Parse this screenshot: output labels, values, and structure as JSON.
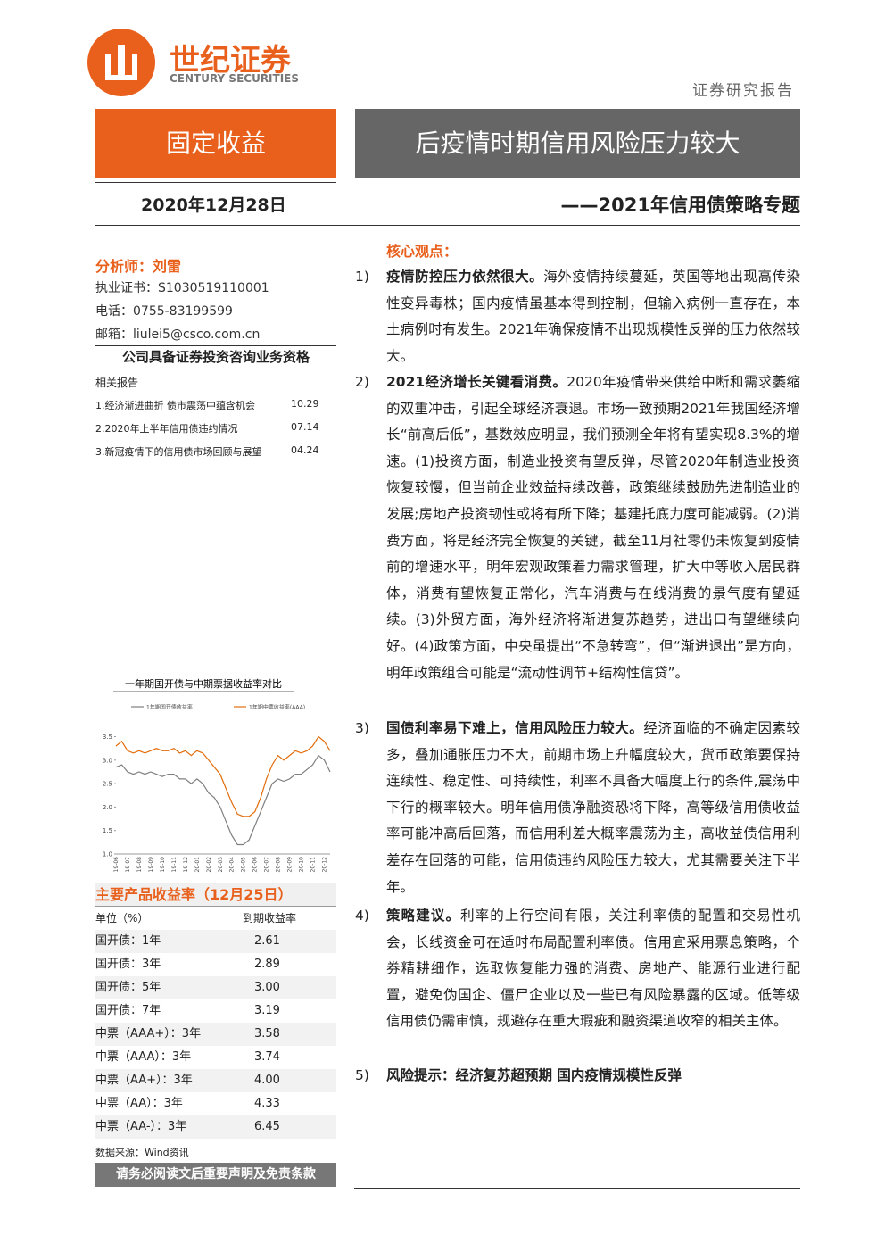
{
  "header": {
    "brand": "世纪证券",
    "brand_en": "CENTURY SECURITIES",
    "report_type": "证券研究报告"
  },
  "banner": {
    "category": "固定收益",
    "title": "后疫情时期信用风险压力较大"
  },
  "date": "2020年12月28日",
  "subtitle": "——2021年信用债策略专题",
  "analyst": {
    "name": "分析师：刘雷",
    "cert": "执业证书：S1030519110001",
    "phone": "电话：0755-83199599",
    "email": "邮箱：liulei5@csco.com.cn"
  },
  "qualification": "公司具备证券投资咨询业务资格",
  "related": {
    "title": "相关报告",
    "items": [
      {
        "title": "1.经济渐进曲折 债市震荡中蕴含机会",
        "date": "10.29"
      },
      {
        "title": "2.2020年上半年信用债违约情况",
        "date": "07.14"
      },
      {
        "title": "3.新冠疫情下的信用债市场回顾与展望",
        "date": "04.24"
      }
    ]
  },
  "chart_data": {
    "type": "line",
    "title": "一年期国开债与中期票据收益率对比",
    "categories": [
      "19-06",
      null,
      "19-07",
      null,
      "19-08",
      null,
      "19-09",
      null,
      "19-10",
      null,
      "19-11",
      null,
      "19-12",
      null,
      "20-01",
      null,
      "20-02",
      null,
      "20-03",
      null,
      "20-04",
      null,
      "20-05",
      null,
      "20-06",
      null,
      "20-07",
      null,
      "20-08",
      null,
      "20-09",
      null,
      "20-10",
      null,
      "20-11",
      null,
      "20-12",
      null
    ],
    "series": [
      {
        "name": "1年期国开债收益率",
        "color": "#7f7f7f",
        "values": [
          2.85,
          2.9,
          2.75,
          2.7,
          2.75,
          2.7,
          2.75,
          2.7,
          2.65,
          2.7,
          2.7,
          2.6,
          2.6,
          2.5,
          2.6,
          2.5,
          2.3,
          2.2,
          2.0,
          1.7,
          1.4,
          1.2,
          1.2,
          1.3,
          1.6,
          1.9,
          2.2,
          2.5,
          2.6,
          2.55,
          2.6,
          2.7,
          2.7,
          2.8,
          2.9,
          3.1,
          3.0,
          2.75
        ]
      },
      {
        "name": "1年期中票收益率(AAA)",
        "color": "#e36c0a",
        "values": [
          3.3,
          3.4,
          3.2,
          3.15,
          3.2,
          3.15,
          3.2,
          3.25,
          3.2,
          3.2,
          3.25,
          3.15,
          3.2,
          3.1,
          3.2,
          3.15,
          3.0,
          2.85,
          2.7,
          2.4,
          2.1,
          1.85,
          1.8,
          1.8,
          1.9,
          2.2,
          2.6,
          2.9,
          3.1,
          3.0,
          3.1,
          3.2,
          3.15,
          3.2,
          3.3,
          3.5,
          3.4,
          3.2
        ]
      }
    ],
    "ylim": [
      1.0,
      3.7
    ],
    "yticks": [
      {
        "value": 1.0,
        "label": "1.0"
      },
      1.5,
      {
        "value": 2.0,
        "label": "2.0"
      },
      2.5,
      {
        "value": 3.0,
        "label": "3.0"
      },
      3.5
    ]
  },
  "yields": {
    "title": "主要产品收益率（12月25日）",
    "header": [
      "单位（%）",
      "到期收益率"
    ],
    "rows": [
      [
        "国开债：1年",
        "2.61"
      ],
      [
        "国开债：3年",
        "2.89"
      ],
      [
        "国开债：5年",
        "3.00"
      ],
      [
        "国开债：7年",
        "3.19"
      ],
      [
        "中票（AAA+）：3年",
        "3.58"
      ],
      [
        "中票（AAA）：3年",
        "3.74"
      ],
      [
        "中票（AA+）：3年",
        "4.00"
      ],
      [
        "中票（AA）：3年",
        "4.33"
      ],
      [
        "中票（AA-）：3年",
        "6.45"
      ]
    ],
    "source": "数据来源：Wind资讯"
  },
  "disclaimer": "请务必阅读文后重要声明及免责条款",
  "core": {
    "title": "核心观点：",
    "points": [
      {
        "number": "1)",
        "lead": "疫情防控压力依然很大。",
        "text": "海外疫情持续蔓延，英国等地出现高传染性变异毒株；国内疫情虽基本得到控制，但输入病例一直存在，本土病例时有发生。2021年确保疫情不出现规模性反弹的压力依然较大。"
      },
      {
        "number": "2)",
        "lead": "2021经济增长关键看消费。",
        "text": "2020年疫情带来供给中断和需求萎缩的双重冲击，引起全球经济衰退。市场一致预期2021年我国经济增长“前高后低”，基数效应明显，我们预测全年将有望实现8.3%的增速。(1)投资方面，制造业投资有望反弹，尽管2020年制造业投资恢复较慢，但当前企业效益持续改善，政策继续鼓励先进制造业的发展;房地产投资韧性或将有所下降；基建托底力度可能减弱。(2)消费方面，将是经济完全恢复的关键，截至11月社零仍未恢复到疫情前的增速水平，明年宏观政策着力需求管理，扩大中等收入居民群体，消费有望恢复正常化，汽车消费与在线消费的景气度有望延续。(3)外贸方面，海外经济将渐进复苏趋势，进出口有望继续向好。(4)政策方面，中央虽提出“不急转弯”，但“渐进退出”是方向，明年政策组合可能是“流动性调节+结构性信贷”。"
      },
      {
        "number": "3)",
        "lead": "国债利率易下难上，信用风险压力较大。",
        "text": "经济面临的不确定因素较多，叠加通胀压力不大，前期市场上升幅度较大，货币政策要保持连续性、稳定性、可持续性，利率不具备大幅度上行的条件,震荡中下行的概率较大。明年信用债净融资恐将下降，高等级信用债收益率可能冲高后回落，而信用利差大概率震荡为主，高收益债信用利差存在回落的可能，信用债违约风险压力较大，尤其需要关注下半年。"
      },
      {
        "number": "4)",
        "lead": "策略建议。",
        "text": "利率的上行空间有限，关注利率债的配置和交易性机会，长线资金可在适时布局配置利率债。信用宜采用票息策略，个券精耕细作，选取恢复能力强的消费、房地产、能源行业进行配置，避免伪国企、僵尸企业以及一些已有风险暴露的区域。低等级信用债仍需审慎，规避存在重大瑕疵和融资渠道收窄的相关主体。"
      },
      {
        "number": "5)",
        "lead": "风险提示：经济复苏超预期 国内疫情规模性反弹"
      }
    ]
  }
}
